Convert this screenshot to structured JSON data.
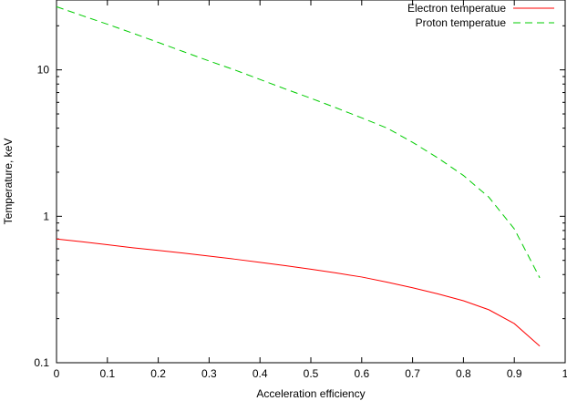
{
  "chart_data": {
    "type": "line",
    "title": "",
    "xlabel": "Acceleration efficiency",
    "ylabel": "Temperature, keV",
    "xlim": [
      0,
      1
    ],
    "ylim": [
      0.1,
      30
    ],
    "yscale": "log",
    "grid": false,
    "legend_position": "top-right",
    "x_ticks": [
      0,
      0.1,
      0.2,
      0.3,
      0.4,
      0.5,
      0.6,
      0.7,
      0.8,
      0.9,
      1
    ],
    "x_tick_labels": [
      "0",
      "0.1",
      "0.2",
      "0.3",
      "0.4",
      "0.5",
      "0.6",
      "0.7",
      "0.8",
      "0.9",
      "1"
    ],
    "y_ticks": [
      0.1,
      1,
      10
    ],
    "y_tick_labels": [
      "0.1",
      "1",
      "10"
    ],
    "series": [
      {
        "name": "Electron temperatue",
        "color": "#ff0000",
        "dash": "solid",
        "x": [
          0,
          0.05,
          0.1,
          0.15,
          0.2,
          0.25,
          0.3,
          0.35,
          0.4,
          0.45,
          0.5,
          0.55,
          0.6,
          0.65,
          0.7,
          0.75,
          0.8,
          0.85,
          0.9,
          0.95
        ],
        "y": [
          0.7,
          0.67,
          0.64,
          0.61,
          0.585,
          0.56,
          0.535,
          0.51,
          0.485,
          0.46,
          0.435,
          0.41,
          0.385,
          0.355,
          0.325,
          0.295,
          0.265,
          0.23,
          0.185,
          0.13
        ]
      },
      {
        "name": "Proton temperatue",
        "color": "#00cc00",
        "dash": "dashed",
        "x": [
          0,
          0.05,
          0.1,
          0.15,
          0.2,
          0.25,
          0.3,
          0.35,
          0.4,
          0.45,
          0.5,
          0.55,
          0.6,
          0.65,
          0.7,
          0.75,
          0.8,
          0.85,
          0.9,
          0.95
        ],
        "y": [
          27,
          23.5,
          20.5,
          17.8,
          15.4,
          13.3,
          11.5,
          10.0,
          8.6,
          7.4,
          6.4,
          5.5,
          4.7,
          4.0,
          3.2,
          2.5,
          1.9,
          1.35,
          0.82,
          0.38
        ]
      }
    ]
  }
}
